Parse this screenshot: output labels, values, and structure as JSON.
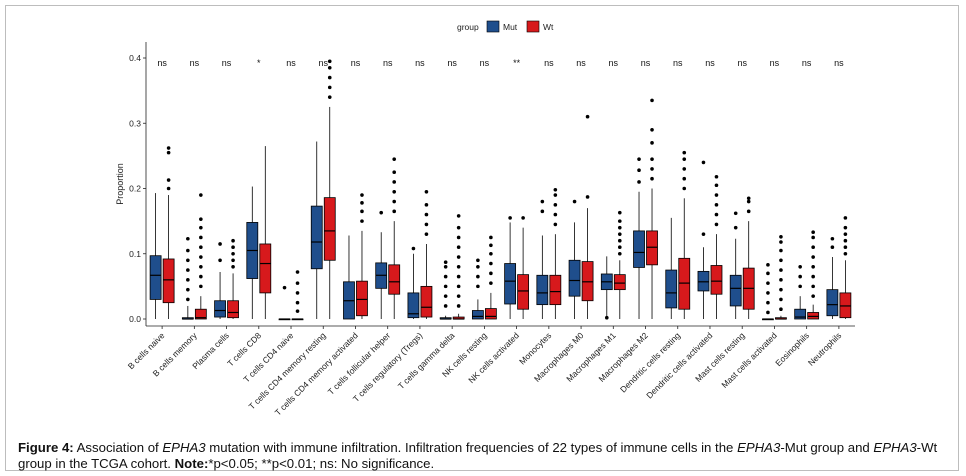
{
  "chart_data": {
    "type": "boxplot",
    "ylabel": "Proportion",
    "ylim": [
      0,
      0.4
    ],
    "yticks": [
      "0.0",
      "0.1",
      "0.2",
      "0.3",
      "0.4"
    ],
    "legend": {
      "title": "group",
      "position": "top",
      "items": [
        {
          "name": "Mut",
          "color": "#1f4e8c"
        },
        {
          "name": "Wt",
          "color": "#d7191c"
        }
      ]
    },
    "categories": [
      "B cells naive",
      "B cells memory",
      "Plasma cells",
      "T cells CD8",
      "T cells CD4 naive",
      "T cells CD4 memory resting",
      "T cells CD4 memory activated",
      "T cells follicular helper",
      "T cells regulatory (Tregs)",
      "T cells gamma delta",
      "NK cells resting",
      "NK cells activated",
      "Monocytes",
      "Macrophages M0",
      "Macrophages M1",
      "Macrophages M2",
      "Dendritic cells resting",
      "Dendritic cells activated",
      "Mast cells resting",
      "Mast cells activated",
      "Eosinophils",
      "Neutrophils"
    ],
    "pvalues": [
      "ns",
      "ns",
      "ns",
      "*",
      "ns",
      "ns",
      "ns",
      "ns",
      "ns",
      "ns",
      "ns",
      "**",
      "ns",
      "ns",
      "ns",
      "ns",
      "ns",
      "ns",
      "ns",
      "ns",
      "ns",
      "ns"
    ],
    "series": [
      {
        "name": "Mut",
        "color": "#1f4e8c",
        "boxes": [
          {
            "min": 0,
            "q1": 0.03,
            "median": 0.067,
            "q3": 0.097,
            "max": 0.193,
            "outliers": []
          },
          {
            "min": 0,
            "q1": 0,
            "median": 0,
            "q3": 0.002,
            "max": 0.02,
            "outliers": [
              0.03,
              0.045,
              0.06,
              0.075,
              0.09,
              0.105,
              0.123
            ]
          },
          {
            "min": 0,
            "q1": 0.003,
            "median": 0.013,
            "q3": 0.028,
            "max": 0.072,
            "outliers": [
              0.09,
              0.115
            ]
          },
          {
            "min": 0,
            "q1": 0.062,
            "median": 0.105,
            "q3": 0.148,
            "max": 0.203,
            "outliers": []
          },
          {
            "min": 0,
            "q1": 0,
            "median": 0,
            "q3": 0,
            "max": 0,
            "outliers": [
              0.048
            ]
          },
          {
            "min": 0,
            "q1": 0.077,
            "median": 0.118,
            "q3": 0.173,
            "max": 0.272,
            "outliers": []
          },
          {
            "min": 0,
            "q1": 0,
            "median": 0.028,
            "q3": 0.057,
            "max": 0.128,
            "outliers": []
          },
          {
            "min": 0,
            "q1": 0.047,
            "median": 0.067,
            "q3": 0.086,
            "max": 0.133,
            "outliers": [
              0.163
            ]
          },
          {
            "min": 0,
            "q1": 0.002,
            "median": 0.008,
            "q3": 0.04,
            "max": 0.1,
            "outliers": [
              0.108
            ]
          },
          {
            "min": 0,
            "q1": 0,
            "median": 0,
            "q3": 0.002,
            "max": 0.005,
            "outliers": [
              0.02,
              0.035,
              0.05,
              0.065,
              0.08,
              0.087
            ]
          },
          {
            "min": 0,
            "q1": 0,
            "median": 0.004,
            "q3": 0.013,
            "max": 0.03,
            "outliers": [
              0.05,
              0.065,
              0.08,
              0.09
            ]
          },
          {
            "min": 0,
            "q1": 0.023,
            "median": 0.058,
            "q3": 0.085,
            "max": 0.148,
            "outliers": [
              0.155
            ]
          },
          {
            "min": 0,
            "q1": 0.022,
            "median": 0.04,
            "q3": 0.067,
            "max": 0.128,
            "outliers": [
              0.165,
              0.18
            ]
          },
          {
            "min": 0,
            "q1": 0.035,
            "median": 0.059,
            "q3": 0.09,
            "max": 0.148,
            "outliers": [
              0.18
            ]
          },
          {
            "min": 0,
            "q1": 0.045,
            "median": 0.057,
            "q3": 0.069,
            "max": 0.096,
            "outliers": [
              0.002
            ]
          },
          {
            "min": 0,
            "q1": 0.079,
            "median": 0.102,
            "q3": 0.135,
            "max": 0.195,
            "outliers": [
              0.21,
              0.228,
              0.245
            ]
          },
          {
            "min": 0,
            "q1": 0.017,
            "median": 0.04,
            "q3": 0.075,
            "max": 0.155,
            "outliers": []
          },
          {
            "min": 0,
            "q1": 0.043,
            "median": 0.057,
            "q3": 0.073,
            "max": 0.11,
            "outliers": [
              0.13,
              0.24
            ]
          },
          {
            "min": 0,
            "q1": 0.02,
            "median": 0.047,
            "q3": 0.067,
            "max": 0.123,
            "outliers": [
              0.14,
              0.162
            ]
          },
          {
            "min": 0,
            "q1": 0,
            "median": 0,
            "q3": 0,
            "max": 0,
            "outliers": [
              0.01,
              0.025,
              0.04,
              0.055,
              0.07,
              0.083
            ]
          },
          {
            "min": 0,
            "q1": 0,
            "median": 0.003,
            "q3": 0.015,
            "max": 0.035,
            "outliers": [
              0.05,
              0.065,
              0.08
            ]
          },
          {
            "min": 0,
            "q1": 0.005,
            "median": 0.022,
            "q3": 0.045,
            "max": 0.095,
            "outliers": [
              0.11,
              0.123
            ]
          }
        ]
      },
      {
        "name": "Wt",
        "color": "#d7191c",
        "boxes": [
          {
            "min": 0,
            "q1": 0.025,
            "median": 0.06,
            "q3": 0.092,
            "max": 0.19,
            "outliers": [
              0.2,
              0.213,
              0.255,
              0.262
            ]
          },
          {
            "min": 0,
            "q1": 0,
            "median": 0.002,
            "q3": 0.015,
            "max": 0.035,
            "outliers": [
              0.05,
              0.065,
              0.08,
              0.095,
              0.11,
              0.125,
              0.14,
              0.153,
              0.19
            ]
          },
          {
            "min": 0,
            "q1": 0.002,
            "median": 0.01,
            "q3": 0.028,
            "max": 0.07,
            "outliers": [
              0.08,
              0.09,
              0.1,
              0.11,
              0.12
            ]
          },
          {
            "min": 0,
            "q1": 0.04,
            "median": 0.085,
            "q3": 0.115,
            "max": 0.265,
            "outliers": []
          },
          {
            "min": 0,
            "q1": 0,
            "median": 0,
            "q3": 0,
            "max": 0,
            "outliers": [
              0.012,
              0.025,
              0.04,
              0.055,
              0.072
            ]
          },
          {
            "min": 0,
            "q1": 0.09,
            "median": 0.135,
            "q3": 0.186,
            "max": 0.325,
            "outliers": [
              0.34,
              0.355,
              0.37,
              0.385,
              0.395
            ]
          },
          {
            "min": 0,
            "q1": 0.005,
            "median": 0.03,
            "q3": 0.058,
            "max": 0.135,
            "outliers": [
              0.15,
              0.165,
              0.178,
              0.19
            ]
          },
          {
            "min": 0,
            "q1": 0.038,
            "median": 0.057,
            "q3": 0.083,
            "max": 0.15,
            "outliers": [
              0.165,
              0.18,
              0.195,
              0.21,
              0.225,
              0.245
            ]
          },
          {
            "min": 0,
            "q1": 0.003,
            "median": 0.018,
            "q3": 0.05,
            "max": 0.115,
            "outliers": [
              0.13,
              0.145,
              0.16,
              0.175,
              0.195
            ]
          },
          {
            "min": 0,
            "q1": 0,
            "median": 0,
            "q3": 0.003,
            "max": 0.008,
            "outliers": [
              0.02,
              0.035,
              0.05,
              0.065,
              0.08,
              0.095,
              0.11,
              0.125,
              0.14,
              0.158
            ]
          },
          {
            "min": 0,
            "q1": 0,
            "median": 0.004,
            "q3": 0.016,
            "max": 0.04,
            "outliers": [
              0.055,
              0.07,
              0.085,
              0.1,
              0.113,
              0.125
            ]
          },
          {
            "min": 0,
            "q1": 0.015,
            "median": 0.043,
            "q3": 0.068,
            "max": 0.14,
            "outliers": [
              0.155
            ]
          },
          {
            "min": 0,
            "q1": 0.022,
            "median": 0.042,
            "q3": 0.067,
            "max": 0.13,
            "outliers": [
              0.145,
              0.16,
              0.175,
              0.19,
              0.198
            ]
          },
          {
            "min": 0,
            "q1": 0.028,
            "median": 0.057,
            "q3": 0.088,
            "max": 0.17,
            "outliers": [
              0.187,
              0.31
            ]
          },
          {
            "min": 0,
            "q1": 0.045,
            "median": 0.055,
            "q3": 0.068,
            "max": 0.09,
            "outliers": [
              0.1,
              0.11,
              0.12,
              0.13,
              0.14,
              0.15,
              0.163
            ]
          },
          {
            "min": 0,
            "q1": 0.083,
            "median": 0.11,
            "q3": 0.135,
            "max": 0.2,
            "outliers": [
              0.215,
              0.23,
              0.245,
              0.27,
              0.29,
              0.335
            ]
          },
          {
            "min": 0,
            "q1": 0.015,
            "median": 0.055,
            "q3": 0.093,
            "max": 0.185,
            "outliers": [
              0.2,
              0.215,
              0.23,
              0.245,
              0.255
            ]
          },
          {
            "min": 0,
            "q1": 0.038,
            "median": 0.058,
            "q3": 0.082,
            "max": 0.13,
            "outliers": [
              0.145,
              0.16,
              0.175,
              0.19,
              0.205,
              0.218
            ]
          },
          {
            "min": 0,
            "q1": 0.015,
            "median": 0.047,
            "q3": 0.078,
            "max": 0.15,
            "outliers": [
              0.165,
              0.18,
              0.185
            ]
          },
          {
            "min": 0,
            "q1": 0,
            "median": 0,
            "q3": 0.002,
            "max": 0.005,
            "outliers": [
              0.015,
              0.03,
              0.045,
              0.06,
              0.075,
              0.09,
              0.105,
              0.118,
              0.126
            ]
          },
          {
            "min": 0,
            "q1": 0,
            "median": 0.004,
            "q3": 0.01,
            "max": 0.022,
            "outliers": [
              0.035,
              0.05,
              0.065,
              0.08,
              0.095,
              0.11,
              0.125,
              0.133
            ]
          },
          {
            "min": 0,
            "q1": 0.002,
            "median": 0.02,
            "q3": 0.04,
            "max": 0.09,
            "outliers": [
              0.1,
              0.11,
              0.12,
              0.13,
              0.14,
              0.155
            ]
          }
        ]
      }
    ]
  },
  "caption": {
    "label": "Figure 4:",
    "part1": " Association of ",
    "gene1": "EPHA3",
    "part2": " mutation with immune infiltration. Infiltration frequencies of 22 types of immune cells in the ",
    "gene2": "EPHA3",
    "part3": "-Mut group and ",
    "gene3": "EPHA3",
    "part4": "-Wt group in the TCGA cohort. ",
    "note_label": "Note:",
    "note_text": "*p<0.05; **p<0.01; ns: No significance."
  }
}
